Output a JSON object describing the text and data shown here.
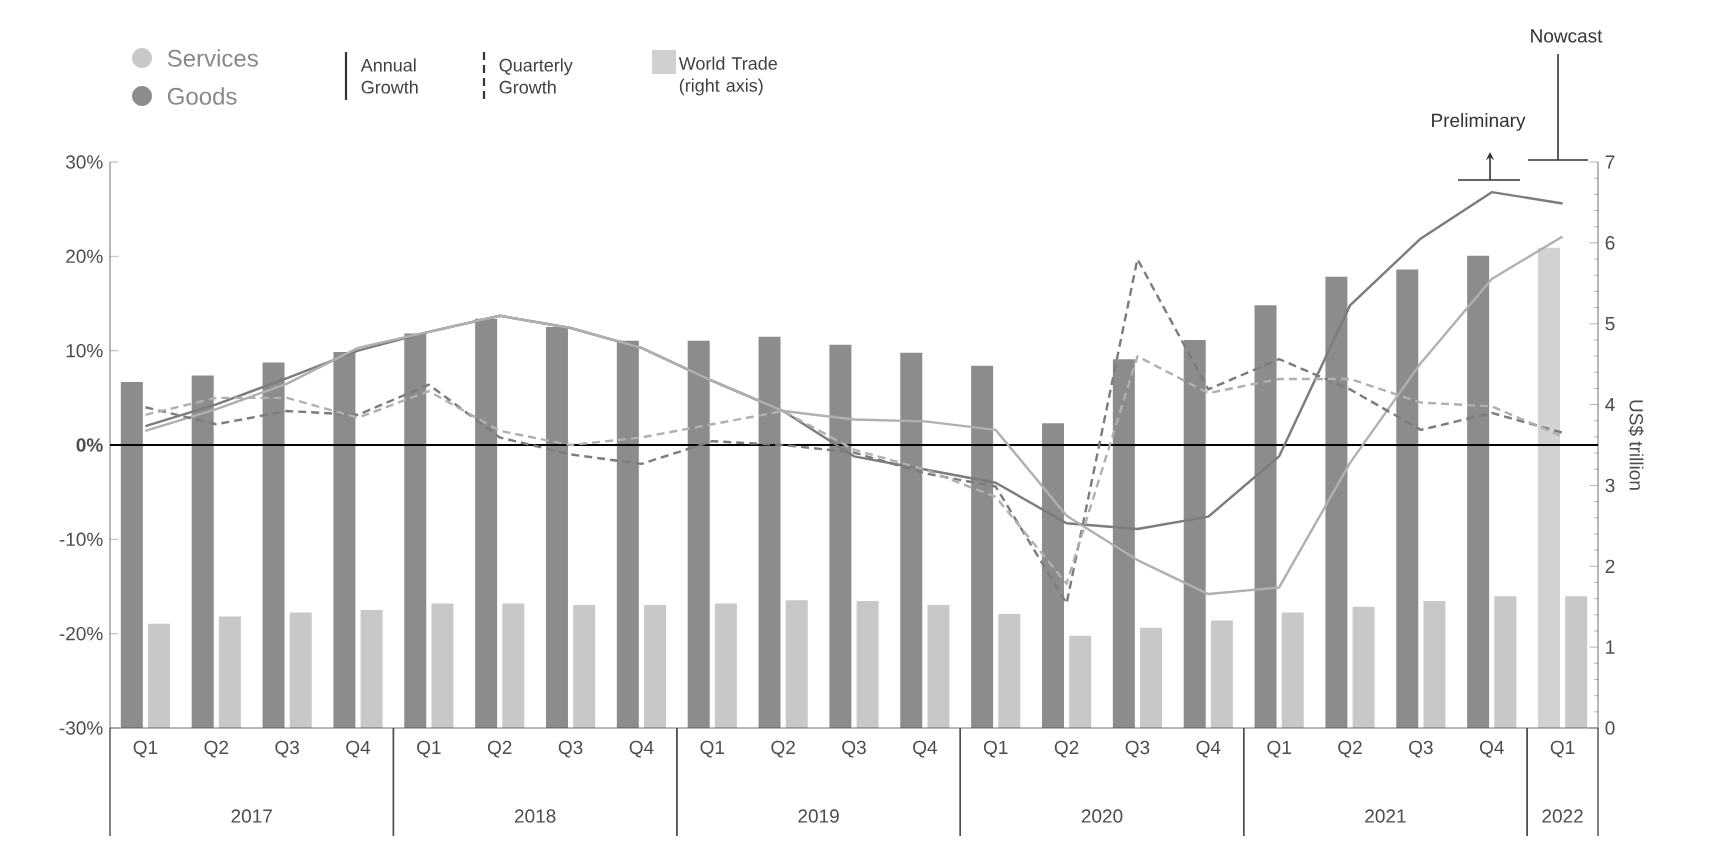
{
  "chart_data": {
    "type": "bar",
    "categories": [
      "Q1",
      "Q2",
      "Q3",
      "Q4",
      "Q1",
      "Q2",
      "Q3",
      "Q4",
      "Q1",
      "Q2",
      "Q3",
      "Q4",
      "Q1",
      "Q2",
      "Q3",
      "Q4",
      "Q1",
      "Q2",
      "Q3",
      "Q4",
      "Q1"
    ],
    "series": [
      {
        "name": "Goods",
        "axis": "y2",
        "color": "#8c8c8c",
        "colors": [
          "#8c8c8c",
          "#8c8c8c",
          "#8c8c8c",
          "#8c8c8c",
          "#8c8c8c",
          "#8c8c8c",
          "#8c8c8c",
          "#8c8c8c",
          "#8c8c8c",
          "#8c8c8c",
          "#8c8c8c",
          "#8c8c8c",
          "#8c8c8c",
          "#8c8c8c",
          "#8c8c8c",
          "#8c8c8c",
          "#8c8c8c",
          "#8c8c8c",
          "#8c8c8c",
          "#8c8c8c",
          "#d2d2d2"
        ],
        "values": [
          4.28,
          4.36,
          4.52,
          4.65,
          4.88,
          5.06,
          4.96,
          4.79,
          4.79,
          4.84,
          4.74,
          4.64,
          4.48,
          3.77,
          4.56,
          4.8,
          5.23,
          5.58,
          5.67,
          5.84,
          5.94
        ]
      },
      {
        "name": "Services",
        "axis": "y2",
        "color": "#c8c8c8",
        "values": [
          1.29,
          1.38,
          1.43,
          1.46,
          1.54,
          1.54,
          1.52,
          1.52,
          1.54,
          1.58,
          1.57,
          1.52,
          1.41,
          1.14,
          1.24,
          1.33,
          1.43,
          1.5,
          1.57,
          1.63,
          1.63
        ]
      },
      {
        "type": "line",
        "color": "#7c7c7c",
        "line_style": "solid",
        "values": [
          2.0,
          4.3,
          7.1,
          10.0,
          12.0,
          13.7,
          12.4,
          10.3,
          6.8,
          3.6,
          -1.2,
          -2.6,
          -4.0,
          -8.3,
          -8.9,
          -7.6,
          -1.2,
          14.8,
          21.9,
          26.8,
          25.6
        ]
      },
      {
        "type": "line",
        "color": "#b0b0b0",
        "line_style": "solid",
        "values": [
          1.5,
          3.8,
          6.5,
          10.3,
          12.0,
          13.7,
          12.4,
          10.3,
          6.8,
          3.6,
          2.7,
          2.5,
          1.6,
          -7.5,
          -12.2,
          -15.8,
          -15.1,
          -1.9,
          8.7,
          17.6,
          22.1
        ]
      },
      {
        "type": "line",
        "color": "#7c7c7c",
        "line_style": "dashed",
        "values": [
          4.0,
          2.2,
          3.6,
          3.2,
          6.4,
          0.8,
          -1.0,
          -2.0,
          0.4,
          0.0,
          -0.8,
          -3.0,
          -4.4,
          -16.8,
          19.7,
          5.9,
          9.1,
          5.9,
          1.6,
          3.4,
          1.3
        ]
      },
      {
        "type": "line",
        "color": "#b0b0b0",
        "line_style": "dashed",
        "values": [
          3.2,
          5.0,
          5.0,
          2.9,
          5.7,
          1.5,
          0.0,
          0.8,
          2.2,
          3.6,
          -0.5,
          -2.6,
          -5.5,
          -14.7,
          9.4,
          5.5,
          7.0,
          7.0,
          4.5,
          4.1,
          0.9
        ]
      }
    ],
    "ylim": [
      -30,
      30
    ],
    "yticks": [
      {
        "value": 30,
        "label": "30%"
      },
      {
        "value": 20,
        "label": "20%"
      },
      {
        "value": 10,
        "label": "10%"
      },
      {
        "value": 0,
        "label": "0%"
      },
      {
        "value": -10,
        "label": "-10%"
      },
      {
        "value": -20,
        "label": "-20%"
      },
      {
        "value": -30,
        "label": "-30%"
      }
    ],
    "y2lim": [
      0,
      7
    ],
    "y2ticks": [
      0,
      1,
      2,
      3,
      4,
      5,
      6,
      7
    ],
    "y2label": "US$ trillion",
    "ref_lines": [
      {
        "axis": "y",
        "value": 0,
        "color": "#000000"
      }
    ],
    "legend": "top left",
    "annotations": [
      "Preliminary",
      "Nowcast",
      "Annual Growth",
      "Quarterly Growth",
      "World Trade (right axis)",
      "2017",
      "2018",
      "2019",
      "2020",
      "2021",
      "2022"
    ]
  }
}
